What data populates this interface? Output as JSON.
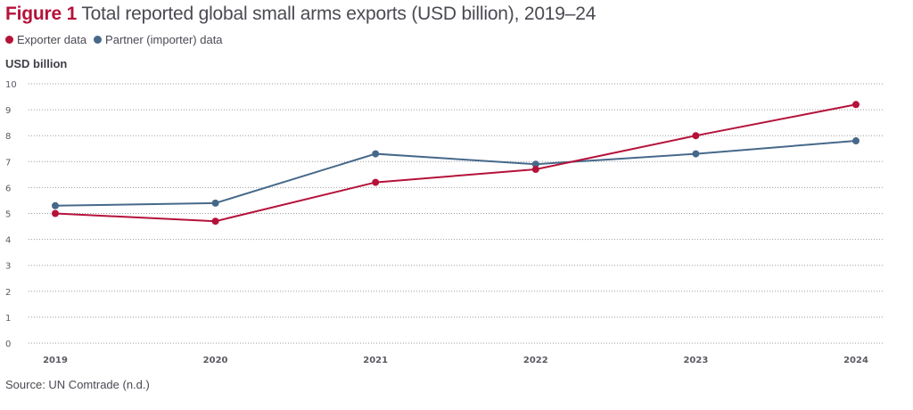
{
  "title": {
    "figure_label": "Figure 1",
    "text": "Total reported global small arms exports (USD billion), 2019–24"
  },
  "legend": [
    {
      "label": "Exporter data",
      "color": "#b5123a"
    },
    {
      "label": "Partner (importer) data",
      "color": "#46698a"
    }
  ],
  "source": "Source: UN Comtrade (n.d.)",
  "chart_data": {
    "type": "line",
    "title": "Figure 1 Total reported global small arms exports (USD billion), 2019–24",
    "xlabel": "",
    "ylabel": "USD billion",
    "x": [
      "2019",
      "2020",
      "2021",
      "2022",
      "2023",
      "2024"
    ],
    "ylim": [
      0,
      10
    ],
    "yticks": [
      "0",
      "1",
      "2",
      "3",
      "4",
      "5",
      "6",
      "7",
      "8",
      "9",
      "10"
    ],
    "grid": true,
    "grid_style": "dotted horizontal",
    "legend_position": "top-left",
    "series": [
      {
        "name": "Exporter data",
        "color": "#b5123a",
        "values": [
          5.0,
          4.7,
          6.2,
          6.7,
          8.0,
          9.2
        ]
      },
      {
        "name": "Partner (importer) data",
        "color": "#46698a",
        "values": [
          5.3,
          5.4,
          7.3,
          6.9,
          7.3,
          7.8
        ]
      }
    ]
  }
}
